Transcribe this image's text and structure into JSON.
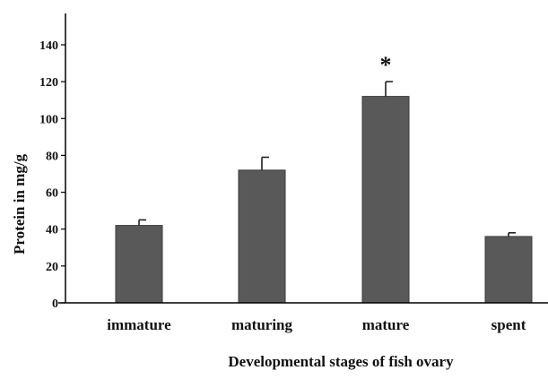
{
  "chart_data": {
    "type": "bar",
    "title": "",
    "xlabel": "Developmental stages of fish ovary",
    "ylabel": "Protein in mg/g",
    "categories": [
      "immature",
      "maturing",
      "mature",
      "spent"
    ],
    "values": [
      42,
      72,
      112,
      36
    ],
    "errors": [
      3,
      7,
      8,
      2
    ],
    "annotations": [
      "",
      "",
      "*",
      ""
    ],
    "ylim": [
      0,
      150
    ],
    "yticks": [
      0,
      20,
      40,
      60,
      80,
      100,
      120,
      140
    ],
    "ytick_labels": [
      "0",
      "20",
      "40",
      "60",
      "80",
      "100",
      "120",
      "140"
    ],
    "grid": false,
    "legend": "none",
    "colors": {
      "bar": "#595959",
      "axis": "#000000"
    }
  }
}
